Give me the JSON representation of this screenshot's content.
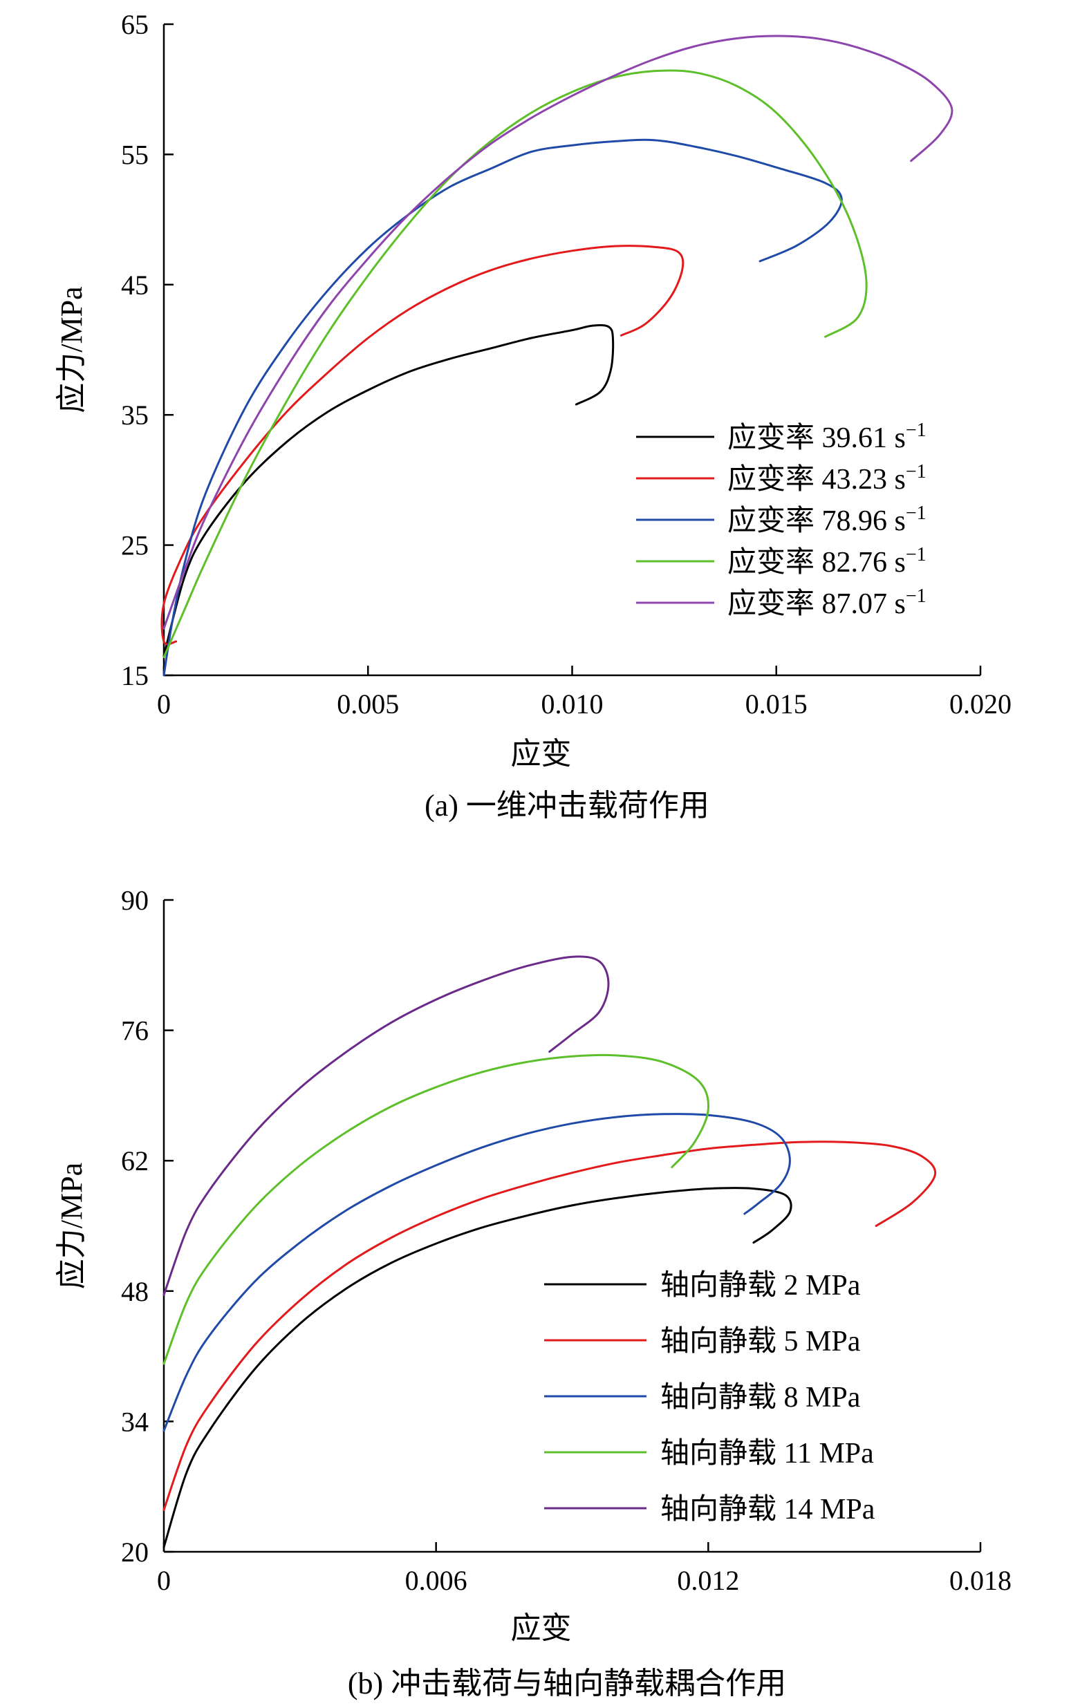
{
  "chart_data": [
    {
      "type": "line",
      "caption": "(a) 一维冲击载荷作用",
      "xlabel": "应变",
      "ylabel": "应力/MPa",
      "xlim": [
        0,
        0.02
      ],
      "ylim": [
        15,
        65
      ],
      "xticks": [
        0,
        0.005,
        0.01,
        0.015,
        0.02
      ],
      "xtick_labels": [
        "0",
        "0.005",
        "0.010",
        "0.015",
        "0.020"
      ],
      "yticks": [
        15,
        25,
        35,
        45,
        55,
        65
      ],
      "ytick_labels": [
        "15",
        "25",
        "35",
        "45",
        "55",
        "65"
      ],
      "legend_position": "bottom-right",
      "series": [
        {
          "name": "应变率 39.61 s",
          "name_sup": "−1",
          "color": "#000000",
          "points": [
            [
              0.0,
              16.5
            ],
            [
              0.0005,
              22.5
            ],
            [
              0.001,
              25.8
            ],
            [
              0.002,
              29.9
            ],
            [
              0.003,
              32.9
            ],
            [
              0.004,
              35.2
            ],
            [
              0.005,
              36.9
            ],
            [
              0.006,
              38.3
            ],
            [
              0.007,
              39.3
            ],
            [
              0.008,
              40.1
            ],
            [
              0.009,
              40.9
            ],
            [
              0.01,
              41.5
            ],
            [
              0.0105,
              41.85
            ],
            [
              0.0109,
              41.75
            ],
            [
              0.011,
              40.8
            ],
            [
              0.01095,
              38.5
            ],
            [
              0.0107,
              36.8
            ],
            [
              0.0101,
              35.8
            ]
          ]
        },
        {
          "name": "应变率 43.23 s",
          "name_sup": "−1",
          "color": "#e31a1c",
          "points": [
            [
              0.0003,
              17.6
            ],
            [
              0.0,
              17.6
            ],
            [
              0.0,
              20.5
            ],
            [
              0.0005,
              24.5
            ],
            [
              0.001,
              27.3
            ],
            [
              0.002,
              31.5
            ],
            [
              0.003,
              35.2
            ],
            [
              0.004,
              38.2
            ],
            [
              0.005,
              40.9
            ],
            [
              0.006,
              43.1
            ],
            [
              0.007,
              44.8
            ],
            [
              0.008,
              46.1
            ],
            [
              0.009,
              47.0
            ],
            [
              0.01,
              47.6
            ],
            [
              0.011,
              47.95
            ],
            [
              0.012,
              47.9
            ],
            [
              0.0126,
              47.5
            ],
            [
              0.0127,
              46.2
            ],
            [
              0.0124,
              44.0
            ],
            [
              0.0118,
              42.0
            ],
            [
              0.0112,
              41.1
            ]
          ]
        },
        {
          "name": "应变率 78.96 s",
          "name_sup": "−1",
          "color": "#1f4aa8",
          "points": [
            [
              0.0,
              15.0
            ],
            [
              0.0002,
              19.0
            ],
            [
              0.0005,
              23.5
            ],
            [
              0.001,
              28.8
            ],
            [
              0.002,
              35.6
            ],
            [
              0.003,
              40.5
            ],
            [
              0.004,
              44.5
            ],
            [
              0.005,
              47.8
            ],
            [
              0.006,
              50.4
            ],
            [
              0.007,
              52.5
            ],
            [
              0.008,
              53.9
            ],
            [
              0.009,
              55.2
            ],
            [
              0.01,
              55.7
            ],
            [
              0.011,
              56.0
            ],
            [
              0.012,
              56.1
            ],
            [
              0.013,
              55.6
            ],
            [
              0.014,
              54.9
            ],
            [
              0.015,
              54.0
            ],
            [
              0.0162,
              52.8
            ],
            [
              0.0166,
              51.6
            ],
            [
              0.0163,
              49.8
            ],
            [
              0.0155,
              48.0
            ],
            [
              0.0146,
              46.8
            ]
          ]
        },
        {
          "name": "应变率 82.76 s",
          "name_sup": "−1",
          "color": "#5dbf2a",
          "points": [
            [
              0.0,
              16.4
            ],
            [
              0.0005,
              20.0
            ],
            [
              0.001,
              23.6
            ],
            [
              0.002,
              30.2
            ],
            [
              0.003,
              36.0
            ],
            [
              0.004,
              41.2
            ],
            [
              0.005,
              45.7
            ],
            [
              0.006,
              49.7
            ],
            [
              0.007,
              53.2
            ],
            [
              0.008,
              56.0
            ],
            [
              0.009,
              58.2
            ],
            [
              0.01,
              59.8
            ],
            [
              0.011,
              60.9
            ],
            [
              0.012,
              61.4
            ],
            [
              0.013,
              61.3
            ],
            [
              0.014,
              60.3
            ],
            [
              0.015,
              58.2
            ],
            [
              0.016,
              54.5
            ],
            [
              0.0168,
              50.0
            ],
            [
              0.0172,
              45.5
            ],
            [
              0.017,
              42.5
            ],
            [
              0.0162,
              41.0
            ]
          ]
        },
        {
          "name": "应变率 87.07 s",
          "name_sup": "−1",
          "color": "#8e44ad",
          "points": [
            [
              0.0,
              18.6
            ],
            [
              0.0005,
              23.0
            ],
            [
              0.001,
              27.0
            ],
            [
              0.002,
              33.3
            ],
            [
              0.003,
              38.6
            ],
            [
              0.004,
              43.2
            ],
            [
              0.005,
              47.0
            ],
            [
              0.006,
              50.4
            ],
            [
              0.007,
              53.3
            ],
            [
              0.008,
              55.8
            ],
            [
              0.009,
              57.8
            ],
            [
              0.01,
              59.5
            ],
            [
              0.011,
              61.0
            ],
            [
              0.012,
              62.3
            ],
            [
              0.013,
              63.3
            ],
            [
              0.014,
              63.9
            ],
            [
              0.015,
              64.1
            ],
            [
              0.016,
              63.9
            ],
            [
              0.017,
              63.2
            ],
            [
              0.018,
              62.0
            ],
            [
              0.0188,
              60.5
            ],
            [
              0.0193,
              58.5
            ],
            [
              0.019,
              56.5
            ],
            [
              0.0183,
              54.5
            ]
          ]
        }
      ]
    },
    {
      "type": "line",
      "caption": "(b) 冲击载荷与轴向静载耦合作用",
      "xlabel": "应变",
      "ylabel": "应力/MPa",
      "xlim": [
        0,
        0.018
      ],
      "ylim": [
        20,
        90
      ],
      "xticks": [
        0,
        0.006,
        0.012,
        0.018
      ],
      "xtick_labels": [
        "0",
        "0.006",
        "0.012",
        "0.018"
      ],
      "yticks": [
        20,
        34,
        48,
        62,
        76,
        90
      ],
      "ytick_labels": [
        "20",
        "34",
        "48",
        "62",
        "76",
        "90"
      ],
      "legend_position": "bottom-right",
      "series": [
        {
          "name": "轴向静载 2 MPa",
          "color": "#000000",
          "points": [
            [
              0.0,
              20.5
            ],
            [
              0.0005,
              28.5
            ],
            [
              0.001,
              33.0
            ],
            [
              0.002,
              39.6
            ],
            [
              0.003,
              44.5
            ],
            [
              0.004,
              48.2
            ],
            [
              0.005,
              51.0
            ],
            [
              0.006,
              53.1
            ],
            [
              0.007,
              54.8
            ],
            [
              0.008,
              56.1
            ],
            [
              0.009,
              57.2
            ],
            [
              0.01,
              58.0
            ],
            [
              0.011,
              58.6
            ],
            [
              0.012,
              59.0
            ],
            [
              0.013,
              59.0
            ],
            [
              0.0137,
              58.3
            ],
            [
              0.0138,
              56.5
            ],
            [
              0.0134,
              54.5
            ],
            [
              0.013,
              53.2
            ]
          ]
        },
        {
          "name": "轴向静载 5 MPa",
          "color": "#e31a1c",
          "points": [
            [
              0.0,
              24.5
            ],
            [
              0.0005,
              31.5
            ],
            [
              0.001,
              35.8
            ],
            [
              0.002,
              42.2
            ],
            [
              0.003,
              47.0
            ],
            [
              0.004,
              50.8
            ],
            [
              0.005,
              53.7
            ],
            [
              0.006,
              56.0
            ],
            [
              0.007,
              57.9
            ],
            [
              0.008,
              59.4
            ],
            [
              0.009,
              60.7
            ],
            [
              0.01,
              61.8
            ],
            [
              0.011,
              62.6
            ],
            [
              0.012,
              63.3
            ],
            [
              0.013,
              63.7
            ],
            [
              0.014,
              64.0
            ],
            [
              0.015,
              64.0
            ],
            [
              0.016,
              63.6
            ],
            [
              0.0167,
              62.5
            ],
            [
              0.017,
              60.5
            ],
            [
              0.0165,
              57.5
            ],
            [
              0.0157,
              55.0
            ]
          ]
        },
        {
          "name": "轴向静载 8 MPa",
          "color": "#1f4aa8",
          "points": [
            [
              0.0,
              33.0
            ],
            [
              0.0005,
              39.0
            ],
            [
              0.001,
              43.2
            ],
            [
              0.002,
              49.0
            ],
            [
              0.003,
              53.2
            ],
            [
              0.004,
              56.6
            ],
            [
              0.005,
              59.3
            ],
            [
              0.006,
              61.5
            ],
            [
              0.007,
              63.4
            ],
            [
              0.008,
              64.9
            ],
            [
              0.009,
              66.0
            ],
            [
              0.01,
              66.7
            ],
            [
              0.011,
              67.0
            ],
            [
              0.012,
              66.9
            ],
            [
              0.013,
              66.1
            ],
            [
              0.0136,
              64.5
            ],
            [
              0.0138,
              62.0
            ],
            [
              0.0136,
              59.5
            ],
            [
              0.0131,
              57.4
            ],
            [
              0.0128,
              56.3
            ]
          ]
        },
        {
          "name": "轴向静载 11 MPa",
          "color": "#5dbf2a",
          "points": [
            [
              0.0,
              40.2
            ],
            [
              0.0005,
              46.8
            ],
            [
              0.001,
              51.0
            ],
            [
              0.002,
              57.0
            ],
            [
              0.003,
              61.5
            ],
            [
              0.004,
              65.0
            ],
            [
              0.005,
              67.8
            ],
            [
              0.006,
              69.9
            ],
            [
              0.007,
              71.5
            ],
            [
              0.008,
              72.6
            ],
            [
              0.009,
              73.2
            ],
            [
              0.01,
              73.3
            ],
            [
              0.011,
              72.6
            ],
            [
              0.0118,
              70.5
            ],
            [
              0.012,
              67.5
            ],
            [
              0.0117,
              64.0
            ],
            [
              0.0112,
              61.3
            ]
          ]
        },
        {
          "name": "轴向静载 14 MPa",
          "color": "#6a2a8a",
          "points": [
            [
              0.0,
              47.6
            ],
            [
              0.0005,
              54.5
            ],
            [
              0.001,
              58.8
            ],
            [
              0.002,
              65.0
            ],
            [
              0.003,
              69.8
            ],
            [
              0.004,
              73.6
            ],
            [
              0.005,
              76.8
            ],
            [
              0.006,
              79.3
            ],
            [
              0.007,
              81.3
            ],
            [
              0.008,
              82.9
            ],
            [
              0.009,
              83.9
            ],
            [
              0.0096,
              83.4
            ],
            [
              0.0098,
              81.0
            ],
            [
              0.0096,
              78.0
            ],
            [
              0.009,
              75.6
            ],
            [
              0.0085,
              73.7
            ]
          ]
        }
      ]
    }
  ]
}
